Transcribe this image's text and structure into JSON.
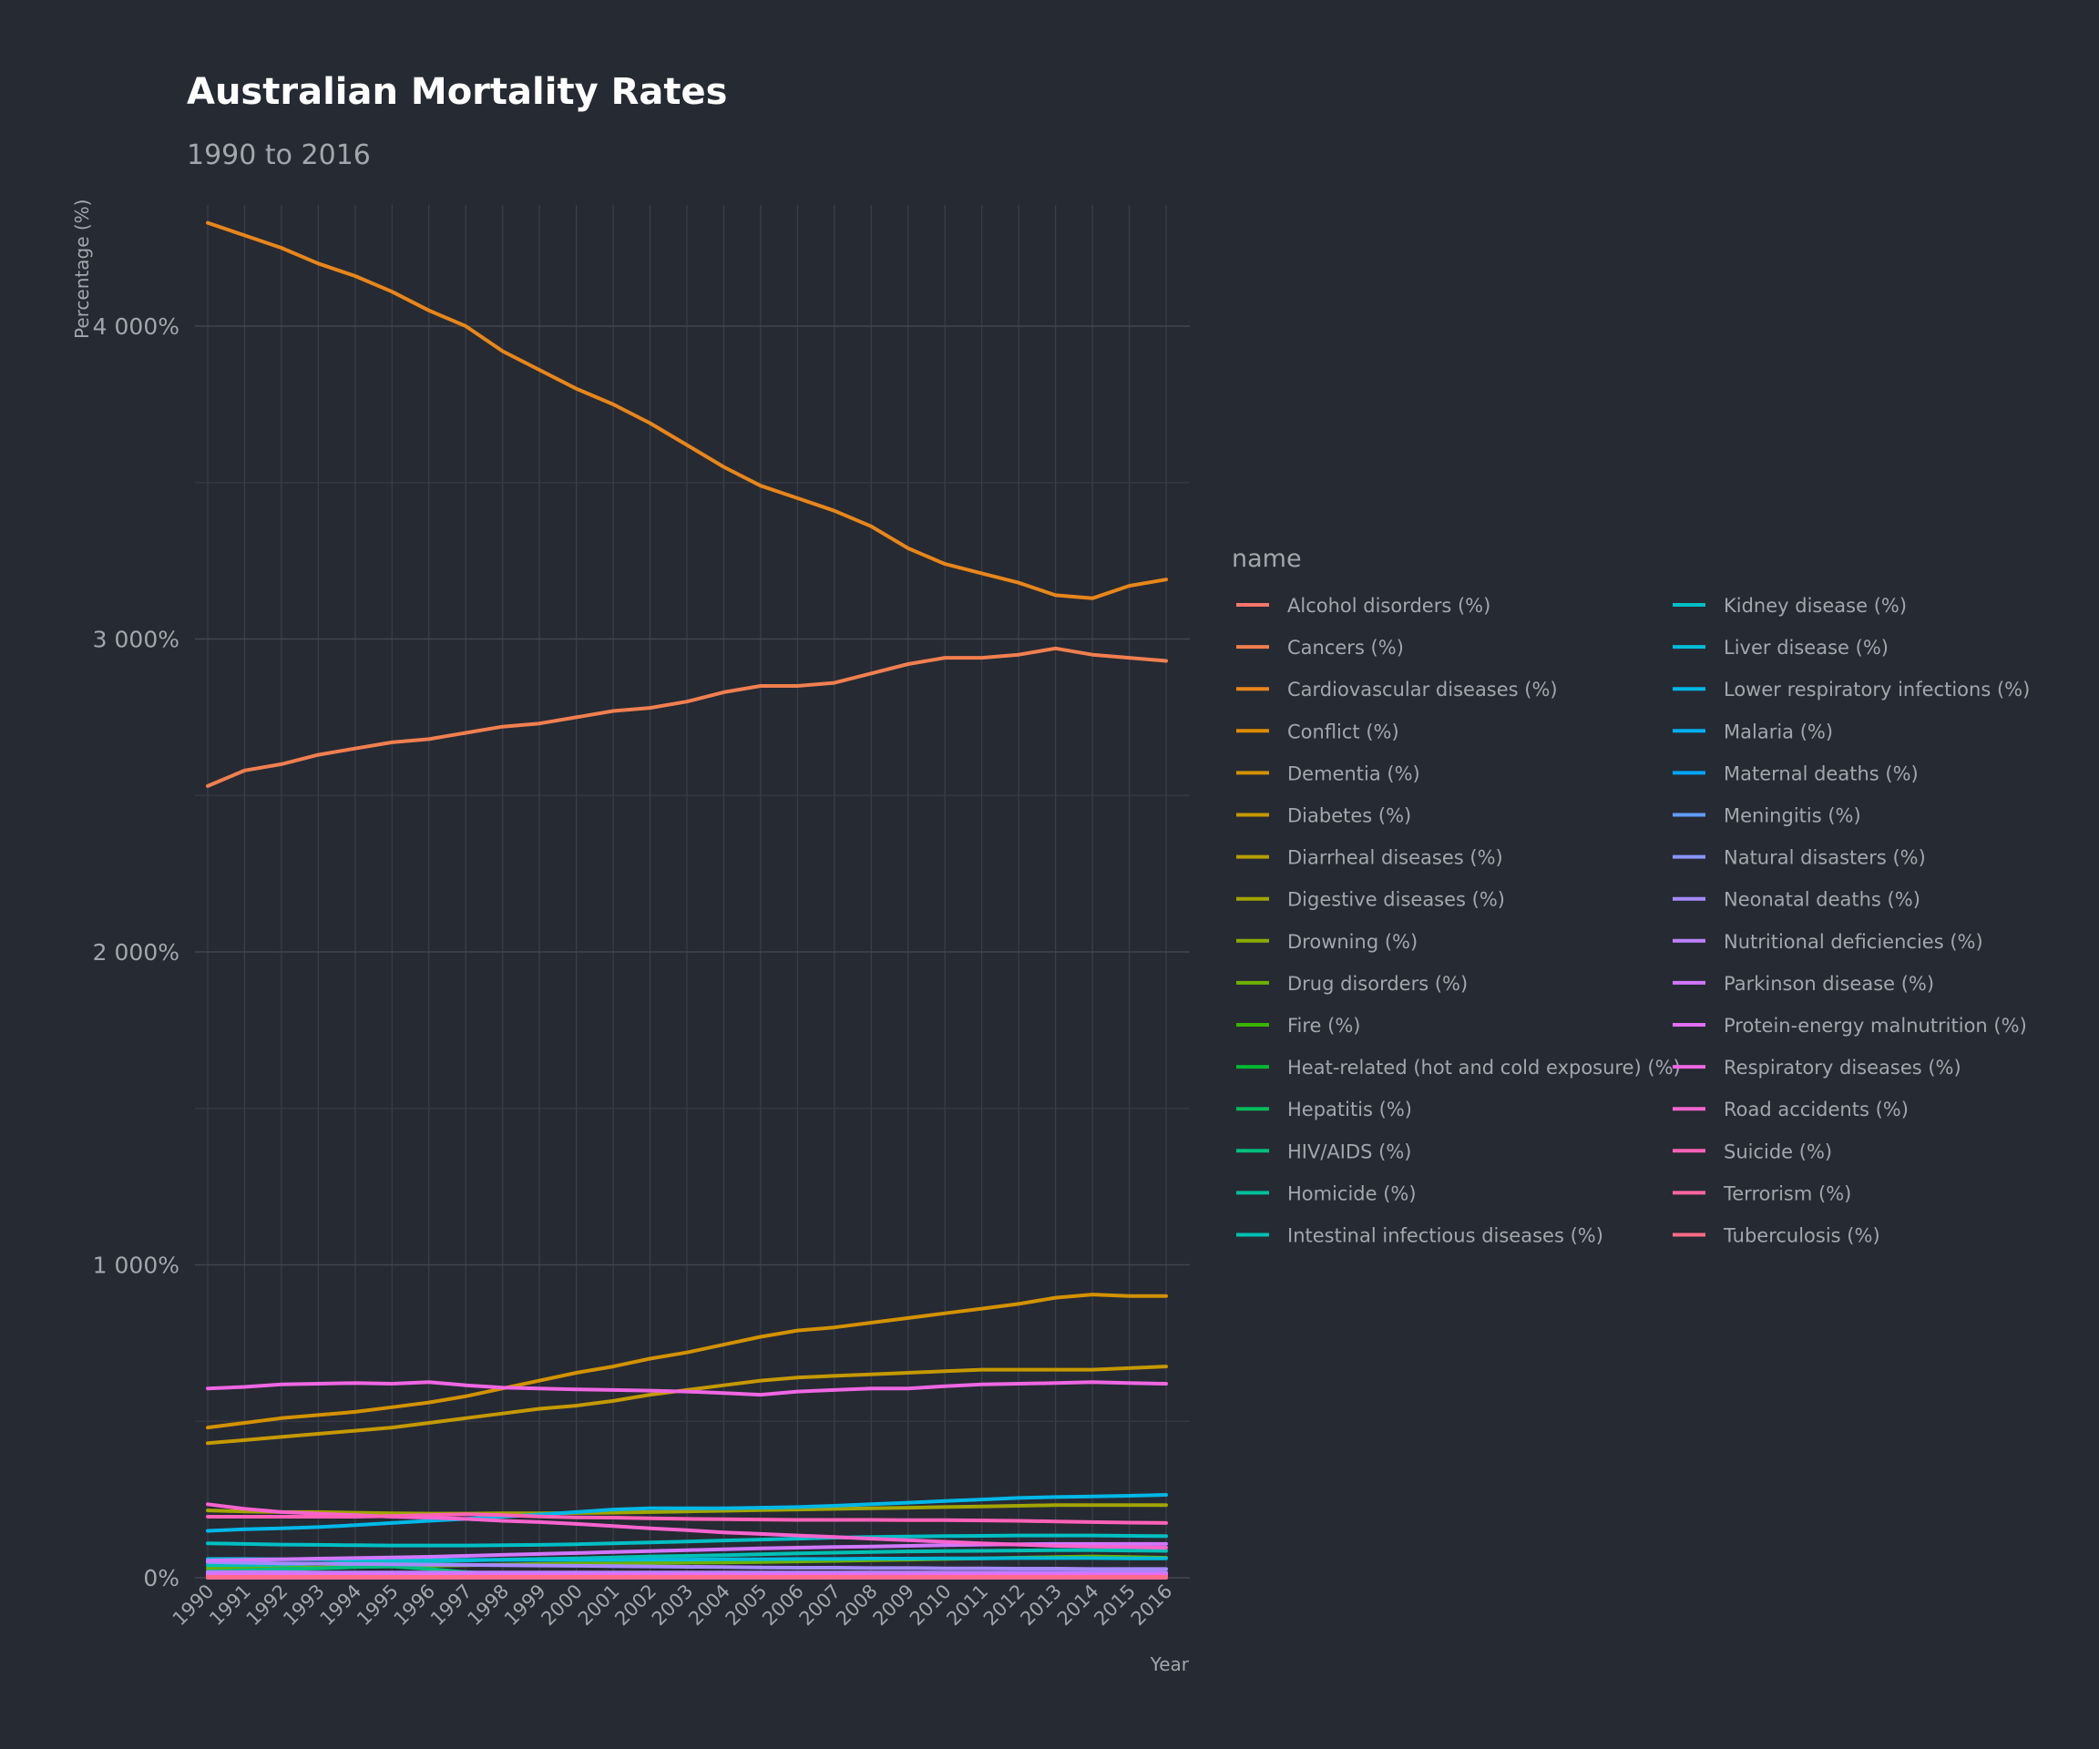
{
  "chart_data": {
    "type": "line",
    "title": "Australian Mortality Rates",
    "subtitle": "1990 to 2016",
    "xlabel": "Year",
    "ylabel": "Percentage (%)",
    "ylim": [
      0,
      4400
    ],
    "y_ticks": [
      0,
      1000,
      2000,
      3000,
      4000
    ],
    "y_tick_labels": [
      "0%",
      "1 000%",
      "2 000%",
      "3 000%",
      "4 000%"
    ],
    "x": [
      1990,
      1991,
      1992,
      1993,
      1994,
      1995,
      1996,
      1997,
      1998,
      1999,
      2000,
      2001,
      2002,
      2003,
      2004,
      2005,
      2006,
      2007,
      2008,
      2009,
      2010,
      2011,
      2012,
      2013,
      2014,
      2015,
      2016
    ],
    "x_tick_labels": [
      "1990",
      "1991",
      "1992",
      "1993",
      "1994",
      "1995",
      "1996",
      "1997",
      "1998",
      "1999",
      "2000",
      "2001",
      "2002",
      "2003",
      "2004",
      "2005",
      "2006",
      "2007",
      "2008",
      "2009",
      "2010",
      "2011",
      "2012",
      "2013",
      "2014",
      "2015",
      "2016"
    ],
    "legend_title": "name",
    "legend_position": "right",
    "grid": true,
    "series": [
      {
        "name": "Alcohol disorders (%)",
        "color": "#F8766D",
        "values": [
          12,
          12,
          12,
          12,
          12,
          12,
          12,
          12,
          12,
          12,
          12,
          12,
          12,
          12,
          12,
          12,
          12,
          12,
          12,
          12,
          12,
          12,
          12,
          12,
          12,
          12,
          12
        ]
      },
      {
        "name": "Cancers (%)",
        "color": "#F17F4F",
        "values": [
          2530,
          2580,
          2600,
          2630,
          2650,
          2670,
          2680,
          2700,
          2720,
          2730,
          2750,
          2770,
          2780,
          2800,
          2830,
          2850,
          2850,
          2860,
          2890,
          2920,
          2940,
          2940,
          2950,
          2970,
          2950,
          2940,
          2930
        ]
      },
      {
        "name": "Cardiovascular diseases (%)",
        "color": "#E8861A",
        "values": [
          4330,
          4290,
          4250,
          4200,
          4160,
          4110,
          4050,
          4000,
          3920,
          3860,
          3800,
          3750,
          3690,
          3620,
          3550,
          3490,
          3450,
          3410,
          3360,
          3290,
          3240,
          3210,
          3180,
          3140,
          3130,
          3170,
          3190
        ]
      },
      {
        "name": "Conflict (%)",
        "color": "#DE8C00",
        "values": [
          2,
          2,
          2,
          2,
          2,
          2,
          2,
          2,
          2,
          2,
          2,
          2,
          2,
          2,
          2,
          2,
          2,
          2,
          2,
          2,
          2,
          2,
          2,
          2,
          2,
          2,
          2
        ]
      },
      {
        "name": "Dementia (%)",
        "color": "#D39200",
        "values": [
          480,
          495,
          510,
          520,
          530,
          545,
          560,
          580,
          605,
          630,
          655,
          675,
          700,
          720,
          745,
          770,
          790,
          800,
          815,
          830,
          845,
          860,
          875,
          895,
          905,
          900,
          900
        ]
      },
      {
        "name": "Diabetes (%)",
        "color": "#C59900",
        "values": [
          430,
          440,
          450,
          460,
          470,
          480,
          495,
          510,
          525,
          540,
          550,
          565,
          585,
          600,
          615,
          630,
          640,
          645,
          650,
          655,
          660,
          665,
          665,
          665,
          665,
          670,
          675
        ]
      },
      {
        "name": "Diarrheal diseases (%)",
        "color": "#B79F00",
        "values": [
          5,
          5,
          5,
          5,
          5,
          5,
          5,
          5,
          5,
          5,
          5,
          5,
          5,
          5,
          5,
          5,
          5,
          5,
          5,
          5,
          5,
          5,
          5,
          5,
          5,
          5,
          5
        ]
      },
      {
        "name": "Digestive diseases (%)",
        "color": "#A3A500",
        "values": [
          215,
          212,
          210,
          210,
          208,
          206,
          205,
          205,
          206,
          206,
          207,
          208,
          210,
          212,
          214,
          216,
          218,
          220,
          222,
          224,
          226,
          228,
          230,
          232,
          232,
          232,
          232
        ]
      },
      {
        "name": "Drowning (%)",
        "color": "#8BAB00",
        "values": [
          15,
          15,
          14,
          14,
          14,
          14,
          13,
          13,
          13,
          13,
          13,
          13,
          13,
          13,
          13,
          12,
          12,
          12,
          12,
          12,
          12,
          12,
          12,
          12,
          12,
          12,
          12
        ]
      },
      {
        "name": "Drug disorders (%)",
        "color": "#6EB100",
        "values": [
          30,
          31,
          32,
          33,
          35,
          37,
          38,
          40,
          42,
          44,
          45,
          46,
          47,
          48,
          49,
          50,
          52,
          54,
          56,
          58,
          60,
          62,
          64,
          66,
          68,
          66,
          64
        ]
      },
      {
        "name": "Fire (%)",
        "color": "#3BB300",
        "values": [
          8,
          8,
          8,
          8,
          8,
          8,
          7,
          7,
          7,
          7,
          7,
          7,
          7,
          7,
          7,
          6,
          6,
          6,
          6,
          6,
          6,
          6,
          6,
          6,
          6,
          6,
          6
        ]
      },
      {
        "name": "Heat-related (hot and cold exposure) (%)",
        "color": "#00B931",
        "values": [
          4,
          4,
          4,
          4,
          4,
          4,
          4,
          4,
          4,
          4,
          4,
          4,
          4,
          4,
          4,
          4,
          4,
          4,
          4,
          4,
          4,
          4,
          4,
          4,
          4,
          4,
          4
        ]
      },
      {
        "name": "Hepatitis (%)",
        "color": "#00BC5A",
        "values": [
          4,
          4,
          4,
          4,
          5,
          5,
          5,
          5,
          5,
          5,
          5,
          5,
          5,
          5,
          5,
          5,
          5,
          5,
          5,
          5,
          5,
          5,
          5,
          5,
          5,
          5,
          5
        ]
      },
      {
        "name": "HIV/AIDS (%)",
        "color": "#00BE7D",
        "values": [
          20,
          24,
          28,
          30,
          34,
          36,
          28,
          18,
          12,
          10,
          9,
          9,
          8,
          8,
          8,
          8,
          7,
          7,
          7,
          7,
          7,
          7,
          6,
          6,
          6,
          6,
          6
        ]
      },
      {
        "name": "Homicide (%)",
        "color": "#00C09B",
        "values": [
          12,
          12,
          12,
          11,
          11,
          11,
          10,
          10,
          10,
          9,
          9,
          9,
          8,
          8,
          8,
          8,
          7,
          7,
          7,
          7,
          7,
          7,
          6,
          6,
          6,
          6,
          6
        ]
      },
      {
        "name": "Intestinal infectious diseases (%)",
        "color": "#00C0B5",
        "values": [
          40,
          40,
          42,
          45,
          48,
          50,
          52,
          55,
          58,
          60,
          62,
          65,
          68,
          70,
          72,
          75,
          78,
          80,
          82,
          84,
          85,
          86,
          87,
          88,
          88,
          87,
          86
        ]
      },
      {
        "name": "Kidney disease (%)",
        "color": "#00BFC4",
        "values": [
          110,
          108,
          106,
          105,
          104,
          103,
          103,
          103,
          104,
          105,
          107,
          110,
          113,
          116,
          119,
          122,
          125,
          128,
          130,
          132,
          133,
          134,
          135,
          135,
          135,
          134,
          133
        ]
      },
      {
        "name": "Liver disease (%)",
        "color": "#00BCD8",
        "values": [
          60,
          60,
          59,
          59,
          58,
          58,
          57,
          57,
          57,
          57,
          57,
          57,
          58,
          58,
          59,
          59,
          60,
          60,
          61,
          61,
          62,
          62,
          63,
          63,
          63,
          62,
          62
        ]
      },
      {
        "name": "Lower respiratory infections (%)",
        "color": "#00B8E7",
        "values": [
          150,
          155,
          158,
          162,
          168,
          175,
          182,
          188,
          195,
          202,
          210,
          218,
          222,
          222,
          222,
          224,
          226,
          230,
          235,
          240,
          245,
          250,
          255,
          258,
          260,
          262,
          265
        ]
      },
      {
        "name": "Malaria (%)",
        "color": "#00B0F6",
        "values": [
          0,
          0,
          0,
          0,
          0,
          0,
          0,
          0,
          0,
          0,
          0,
          0,
          0,
          0,
          0,
          0,
          0,
          0,
          0,
          0,
          0,
          0,
          0,
          0,
          0,
          0,
          0
        ]
      },
      {
        "name": "Maternal deaths (%)",
        "color": "#00A5FF",
        "values": [
          1,
          1,
          1,
          1,
          1,
          1,
          1,
          1,
          1,
          1,
          1,
          1,
          1,
          1,
          1,
          1,
          1,
          1,
          1,
          1,
          1,
          1,
          1,
          1,
          1,
          1,
          1
        ]
      },
      {
        "name": "Meningitis (%)",
        "color": "#619CFF",
        "values": [
          6,
          6,
          6,
          5,
          5,
          5,
          5,
          5,
          5,
          4,
          4,
          4,
          4,
          4,
          4,
          3,
          3,
          3,
          3,
          3,
          3,
          3,
          3,
          3,
          3,
          3,
          3
        ]
      },
      {
        "name": "Natural disasters (%)",
        "color": "#8B93FF",
        "values": [
          1,
          1,
          1,
          1,
          1,
          1,
          1,
          1,
          1,
          1,
          1,
          1,
          1,
          1,
          1,
          1,
          1,
          1,
          1,
          1,
          1,
          1,
          1,
          1,
          1,
          1,
          1
        ]
      },
      {
        "name": "Neonatal deaths (%)",
        "color": "#A58AFF",
        "values": [
          50,
          48,
          46,
          45,
          44,
          43,
          42,
          41,
          40,
          39,
          38,
          37,
          36,
          35,
          34,
          33,
          32,
          32,
          31,
          31,
          30,
          30,
          29,
          29,
          28,
          28,
          28
        ]
      },
      {
        "name": "Nutritional deficiencies (%)",
        "color": "#BC81FF",
        "values": [
          18,
          18,
          18,
          17,
          17,
          17,
          17,
          17,
          17,
          17,
          17,
          17,
          17,
          17,
          17,
          17,
          17,
          17,
          17,
          17,
          17,
          17,
          17,
          17,
          17,
          17,
          17
        ]
      },
      {
        "name": "Parkinson disease (%)",
        "color": "#D177FF",
        "values": [
          55,
          57,
          59,
          61,
          63,
          65,
          67,
          70,
          73,
          76,
          79,
          82,
          85,
          88,
          91,
          94,
          96,
          98,
          100,
          102,
          104,
          106,
          107,
          108,
          108,
          108,
          108
        ]
      },
      {
        "name": "Protein-energy malnutrition (%)",
        "color": "#E36EF6",
        "values": [
          10,
          10,
          10,
          10,
          10,
          10,
          10,
          10,
          10,
          10,
          10,
          10,
          10,
          10,
          10,
          10,
          10,
          10,
          10,
          10,
          10,
          10,
          10,
          10,
          10,
          10,
          10
        ]
      },
      {
        "name": "Respiratory diseases (%)",
        "color": "#EE67E3",
        "values": [
          605,
          610,
          618,
          620,
          622,
          620,
          625,
          615,
          608,
          605,
          602,
          600,
          598,
          595,
          590,
          585,
          595,
          600,
          605,
          605,
          612,
          618,
          620,
          622,
          625,
          622,
          620
        ]
      },
      {
        "name": "Road accidents (%)",
        "color": "#F764CE",
        "values": [
          235,
          220,
          210,
          205,
          200,
          195,
          192,
          188,
          182,
          178,
          172,
          165,
          158,
          152,
          145,
          140,
          135,
          130,
          125,
          120,
          115,
          110,
          106,
          102,
          100,
          98,
          96
        ]
      },
      {
        "name": "Suicide (%)",
        "color": "#FE61B7",
        "values": [
          195,
          195,
          195,
          195,
          195,
          197,
          200,
          203,
          200,
          196,
          193,
          192,
          190,
          188,
          187,
          186,
          185,
          185,
          185,
          184,
          184,
          183,
          182,
          180,
          178,
          176,
          175
        ]
      },
      {
        "name": "Terrorism (%)",
        "color": "#FF66A0",
        "values": [
          0,
          0,
          0,
          0,
          0,
          0,
          0,
          0,
          0,
          0,
          0,
          0,
          0,
          0,
          0,
          0,
          0,
          0,
          0,
          0,
          0,
          0,
          0,
          0,
          0,
          0,
          0
        ]
      },
      {
        "name": "Tuberculosis (%)",
        "color": "#FD6B87",
        "values": [
          3,
          3,
          3,
          3,
          3,
          3,
          3,
          3,
          3,
          3,
          3,
          3,
          3,
          3,
          3,
          3,
          3,
          3,
          3,
          3,
          3,
          3,
          3,
          3,
          3,
          3,
          3
        ]
      }
    ]
  }
}
